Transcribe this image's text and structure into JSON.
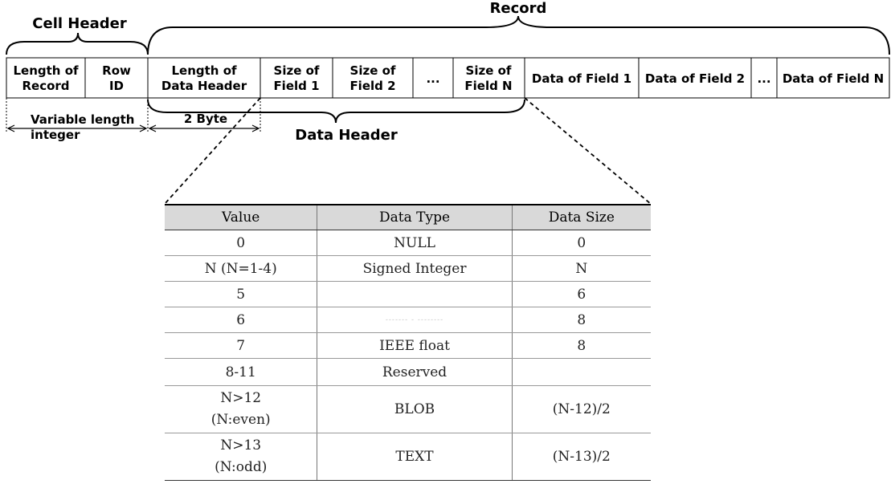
{
  "labels": {
    "record": "Record",
    "cell_header": "Cell Header",
    "data_header": "Data Header",
    "variable_length_1": "Variable length",
    "variable_length_2": "integer",
    "two_byte": "2 Byte"
  },
  "cells": [
    {
      "line1": "Length of",
      "line2": "Record"
    },
    {
      "line1": "Row",
      "line2": "ID"
    },
    {
      "line1": "Length of",
      "line2": "Data Header"
    },
    {
      "line1": "Size of",
      "line2": "Field 1"
    },
    {
      "line1": "Size of",
      "line2": "Field 2"
    },
    {
      "line1": "...",
      "line2": ""
    },
    {
      "line1": "Size of",
      "line2": "Field N"
    },
    {
      "line1": "Data of Field 1",
      "line2": ""
    },
    {
      "line1": "Data of Field 2",
      "line2": ""
    },
    {
      "line1": "...",
      "line2": ""
    },
    {
      "line1": "Data of Field N",
      "line2": ""
    }
  ],
  "table": {
    "headers": [
      "Value",
      "Data Type",
      "Data Size"
    ],
    "rows": [
      [
        "0",
        "NULL",
        "0"
      ],
      [
        "N (N=1-4)",
        "Signed Integer",
        "N"
      ],
      [
        "5",
        "",
        "6"
      ],
      [
        "6",
        "------- - --------",
        "8"
      ],
      [
        "7",
        "IEEE float",
        "8"
      ],
      [
        "8-11",
        "Reserved",
        ""
      ],
      [
        "N>12\n(N:even)",
        "BLOB",
        "(N-12)/2"
      ],
      [
        "N>13\n(N:odd)",
        "TEXT",
        "(N-13)/2"
      ]
    ]
  }
}
